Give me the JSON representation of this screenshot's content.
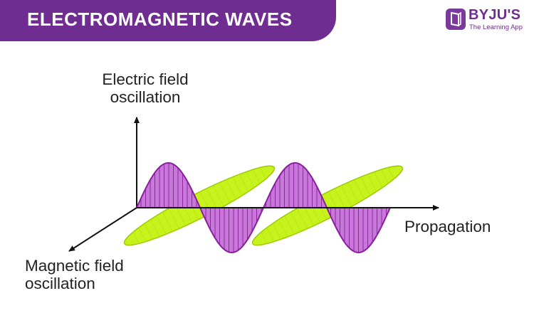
{
  "header": {
    "title": "ELECTROMAGNETIC WAVES",
    "brand": {
      "name": "BYJU'S",
      "tagline": "The Learning App",
      "icon": "byjus-logo-icon"
    }
  },
  "diagram": {
    "electric_label": [
      "Electric field",
      "oscillation"
    ],
    "magnetic_label": [
      "Magnetic field",
      "oscillation"
    ],
    "propagation_label": "Propagation",
    "colors": {
      "electric_fill": "#c878d8",
      "electric_stroke": "#8a1e9e",
      "magnetic_fill": "#c8f21c",
      "magnetic_stroke": "#9ccc00",
      "axes": "#111111",
      "banner": "#6f2c91"
    }
  }
}
